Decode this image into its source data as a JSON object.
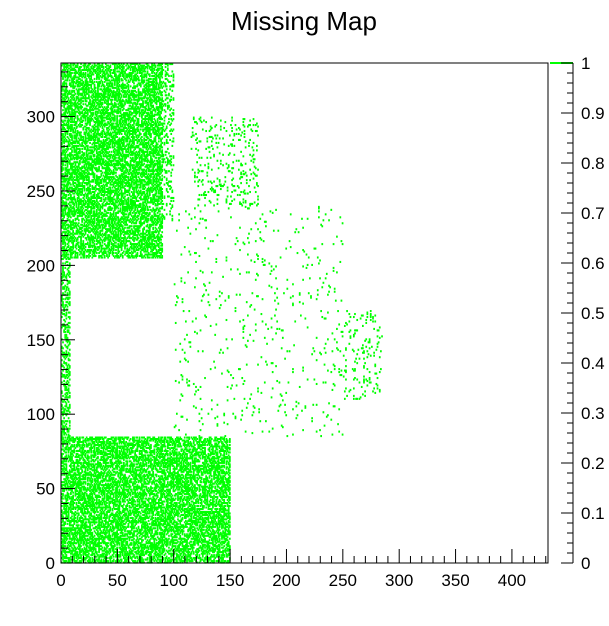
{
  "chart_data": {
    "type": "heatmap",
    "title": "Missing Map",
    "xlabel": "",
    "ylabel": "",
    "xlim": [
      0,
      432
    ],
    "ylim": [
      0,
      336
    ],
    "x_ticks": [
      0,
      50,
      100,
      150,
      200,
      250,
      300,
      350,
      400
    ],
    "y_ticks": [
      0,
      50,
      100,
      150,
      200,
      250,
      300
    ],
    "colorbar": {
      "range": [
        0,
        1
      ],
      "ticks": [
        "0",
        "0.1",
        "0.2",
        "0.3",
        "0.4",
        "0.5",
        "0.6",
        "0.7",
        "0.8",
        "0.9",
        "1"
      ]
    },
    "cell_value": 1,
    "cell_color": "#00ff00",
    "grid": false,
    "regions": [
      {
        "name": "upper-left cluster",
        "x": [
          0,
          90
        ],
        "y": [
          205,
          336
        ],
        "density": 0.55
      },
      {
        "name": "upper-left tail",
        "x": [
          90,
          100
        ],
        "y": [
          230,
          336
        ],
        "density": 0.2
      },
      {
        "name": "lower-left cluster",
        "x": [
          0,
          150
        ],
        "y": [
          0,
          85
        ],
        "density": 0.55
      },
      {
        "name": "left edge band",
        "x": [
          0,
          8
        ],
        "y": [
          85,
          205
        ],
        "density": 0.35
      },
      {
        "name": "upper-middle cluster",
        "x": [
          115,
          175
        ],
        "y": [
          240,
          300
        ],
        "density": 0.08
      },
      {
        "name": "central scatter",
        "x": [
          100,
          250
        ],
        "y": [
          85,
          240
        ],
        "density": 0.02
      },
      {
        "name": "right sparse cluster",
        "x": [
          250,
          285
        ],
        "y": [
          110,
          170
        ],
        "density": 0.06
      }
    ]
  }
}
